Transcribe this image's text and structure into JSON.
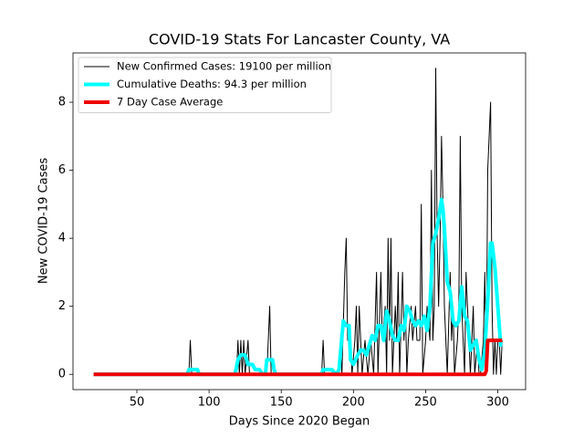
{
  "chart_data": {
    "type": "line",
    "title": "COVID-19 Stats For Lancaster County, VA",
    "x_label": "Days Since 2020 Began",
    "y_label": "New COVID-19 Cases",
    "xlim": [
      5.75,
      319.25
    ],
    "xticks": [
      50,
      100,
      150,
      200,
      250,
      300
    ],
    "ylim": [
      -0.45,
      9.45
    ],
    "yticks": [
      0,
      2,
      4,
      6,
      8
    ],
    "legend": "upper left",
    "grid": false,
    "series": [
      {
        "name": "New Confirmed Cases: 19100 per million",
        "color": "#000000",
        "width": 1,
        "x": [
          20,
          86,
          87,
          88,
          119,
          120,
          121,
          122,
          123,
          124,
          125,
          127,
          128,
          140,
          142,
          143,
          178,
          179,
          180,
          190,
          191,
          192,
          194,
          195,
          196,
          198,
          199,
          201,
          202,
          203,
          204,
          205,
          206,
          208,
          210,
          212,
          214,
          216,
          217,
          219,
          220,
          222,
          223,
          224,
          225,
          226,
          227,
          229,
          230,
          231,
          232,
          234,
          235,
          236,
          237,
          238,
          240,
          241,
          243,
          244,
          246,
          247,
          248,
          250,
          251,
          253,
          254,
          255,
          256,
          257,
          258,
          259,
          260,
          261,
          262,
          263,
          264,
          265,
          267,
          268,
          269,
          270,
          272,
          273,
          274,
          275,
          276,
          277,
          278,
          279,
          280,
          281,
          282,
          283,
          284,
          286,
          287,
          288,
          290,
          291,
          292,
          293,
          294,
          295,
          296,
          297,
          298,
          299,
          300,
          301,
          302,
          303
        ],
        "values": [
          0,
          0,
          1,
          0,
          0,
          1,
          0,
          1,
          0,
          1,
          0,
          1,
          0,
          0,
          2,
          0,
          0,
          1,
          0,
          0,
          1,
          0,
          3,
          4,
          1,
          1,
          0,
          1,
          2,
          0,
          2,
          1,
          0,
          1,
          0,
          1,
          0,
          3,
          0,
          3,
          1,
          2,
          0,
          4,
          1,
          4,
          0,
          2,
          1,
          3,
          0,
          3,
          1,
          2,
          0,
          1,
          2,
          1,
          2,
          1,
          1,
          5,
          0,
          1,
          2,
          1,
          6,
          1,
          2,
          9,
          4,
          2,
          4,
          7,
          5,
          2,
          1,
          0,
          3,
          1,
          2,
          0,
          1,
          2,
          7,
          2,
          1,
          0,
          3,
          2,
          1,
          0,
          1,
          2,
          0,
          1,
          0,
          0,
          1,
          3,
          0,
          6,
          7,
          8,
          2,
          0,
          1,
          0,
          1,
          1,
          0,
          1
        ]
      },
      {
        "name": "Cumulative Deaths: 94.3 per million",
        "color": "#00ffff",
        "width": 4,
        "x": [
          20,
          85,
          86,
          92,
          93,
          118,
          120,
          122,
          125,
          127,
          130,
          132,
          135,
          137,
          139,
          140,
          144,
          145,
          146,
          178,
          179,
          185,
          188,
          190,
          193,
          195,
          197,
          198,
          200,
          203,
          205,
          207,
          209,
          211,
          213,
          215,
          217,
          219,
          221,
          223,
          225,
          227,
          229,
          231,
          233,
          235,
          237,
          239,
          241,
          243,
          245,
          247,
          249,
          251,
          253,
          255,
          257,
          259,
          261,
          262,
          263,
          265,
          267,
          269,
          271,
          273,
          275,
          277,
          279,
          281,
          283,
          285,
          287,
          289,
          291,
          293,
          295,
          296,
          298,
          300,
          302,
          303
        ],
        "values": [
          0,
          0,
          0.14,
          0.14,
          0,
          0,
          0.43,
          0.57,
          0.57,
          0.29,
          0.29,
          0.14,
          0.14,
          0,
          0,
          0.43,
          0.43,
          0.14,
          0,
          0,
          0.14,
          0.14,
          0,
          0.14,
          1.57,
          1.43,
          1.43,
          0.43,
          0.29,
          0.57,
          0.71,
          0.71,
          0.57,
          0.86,
          1.14,
          1.0,
          1.43,
          1.43,
          1.0,
          1.86,
          1.57,
          1.14,
          1.0,
          1.0,
          1.43,
          1.29,
          2.0,
          1.86,
          1.57,
          1.43,
          1.57,
          1.43,
          1.71,
          1.29,
          2.0,
          3.86,
          4.14,
          4.57,
          5.14,
          4.86,
          4.29,
          2.71,
          2.43,
          1.57,
          1.43,
          1.57,
          2.57,
          1.71,
          1.57,
          0.71,
          0.86,
          1.0,
          0.43,
          0.14,
          0.71,
          2.14,
          3.86,
          3.86,
          3.14,
          2.0,
          0.86,
          0.86
        ]
      },
      {
        "name": "7 Day Case Average",
        "color": "#ee0000",
        "width": 4,
        "x": [
          20,
          291,
          292,
          293,
          303
        ],
        "values": [
          0,
          0,
          0.1,
          1,
          1
        ]
      }
    ]
  }
}
